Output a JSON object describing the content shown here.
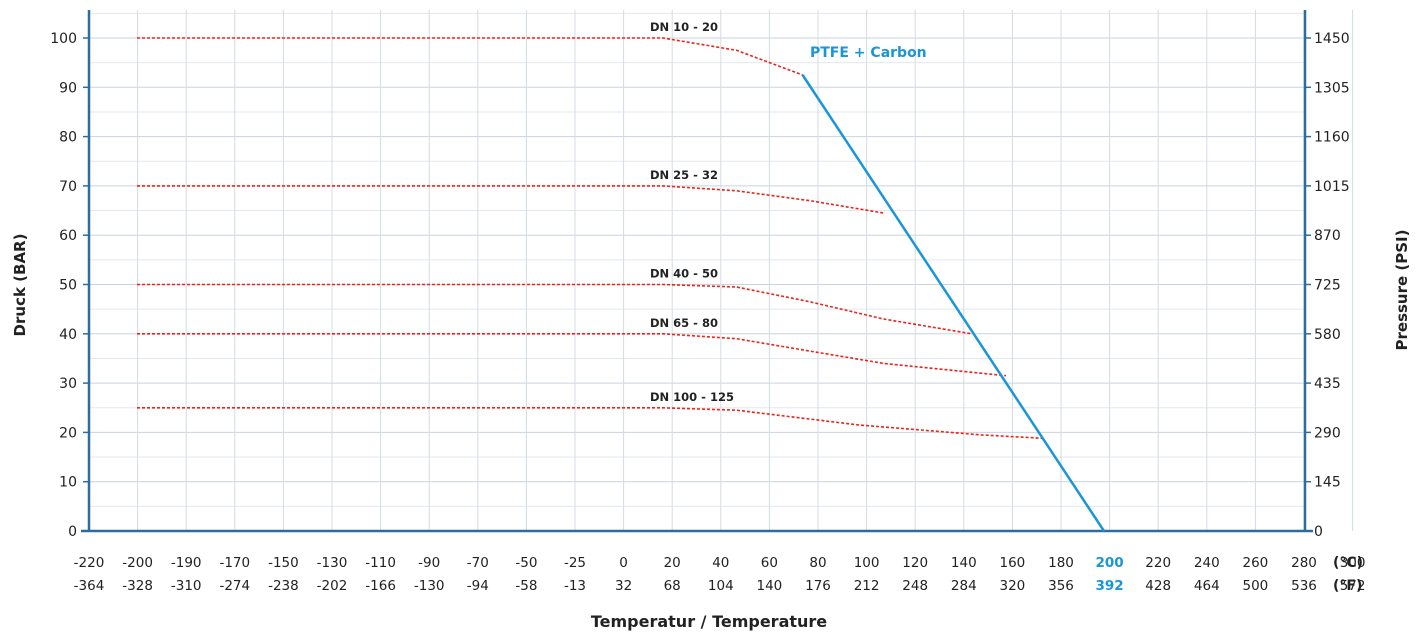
{
  "chart_data": {
    "type": "line",
    "title": "",
    "ylabel_left": "Druck (BAR)",
    "ylabel_right": "Pressure (PSI)",
    "xlabel": "Temperatur / Temperature",
    "unit_c": "(°C)",
    "unit_f": "(°F)",
    "ylim": [
      0,
      100
    ],
    "y_ticks_bar": [
      "0",
      "10",
      "20",
      "30",
      "40",
      "50",
      "60",
      "70",
      "80",
      "90",
      "100"
    ],
    "y_ticks_psi": [
      "0",
      "145",
      "290",
      "435",
      "580",
      "725",
      "870",
      "1015",
      "1160",
      "1305",
      "1450"
    ],
    "x_ticks_c": [
      "-220",
      "-200",
      "-190",
      "-170",
      "-150",
      "-130",
      "-110",
      "-90",
      "-70",
      "-50",
      "-25",
      "0",
      "20",
      "40",
      "60",
      "80",
      "100",
      "120",
      "140",
      "160",
      "180",
      "200",
      "220",
      "240",
      "260",
      "280",
      "300"
    ],
    "x_ticks_f": [
      "-364",
      "-328",
      "-310",
      "-274",
      "-238",
      "-202",
      "-166",
      "-130",
      "-94",
      "-58",
      "-13",
      "32",
      "68",
      "104",
      "140",
      "176",
      "212",
      "248",
      "284",
      "320",
      "356",
      "392",
      "428",
      "464",
      "500",
      "536",
      "572"
    ],
    "highlight_tick": "200",
    "highlight_tick_f": "392",
    "grid": true,
    "series": [
      {
        "name": "DN 10 - 20",
        "style": "dotted",
        "color": "#e8261c",
        "points": [
          [
            -200,
            100
          ],
          [
            20,
            100
          ],
          [
            50,
            97.5
          ],
          [
            77,
            92.5
          ]
        ]
      },
      {
        "name": "DN 25 - 32",
        "style": "dotted",
        "color": "#e8261c",
        "points": [
          [
            -200,
            70
          ],
          [
            20,
            70
          ],
          [
            50,
            69
          ],
          [
            80,
            67
          ],
          [
            110,
            64.5
          ]
        ]
      },
      {
        "name": "DN 40 - 50",
        "style": "dotted",
        "color": "#e8261c",
        "points": [
          [
            -200,
            50
          ],
          [
            20,
            50
          ],
          [
            50,
            49.5
          ],
          [
            80,
            46.5
          ],
          [
            110,
            43
          ],
          [
            146,
            40
          ]
        ]
      },
      {
        "name": "DN 65 - 80",
        "style": "dotted",
        "color": "#e8261c",
        "points": [
          [
            -200,
            40
          ],
          [
            20,
            40
          ],
          [
            50,
            39
          ],
          [
            80,
            36.5
          ],
          [
            110,
            34
          ],
          [
            160,
            31.5
          ]
        ]
      },
      {
        "name": "DN 100 - 125",
        "style": "dotted",
        "color": "#e8261c",
        "points": [
          [
            -200,
            25
          ],
          [
            20,
            25
          ],
          [
            50,
            24.5
          ],
          [
            100,
            21.5
          ],
          [
            150,
            19.5
          ],
          [
            175,
            18.8
          ]
        ]
      },
      {
        "name": "PTFE + Carbon",
        "style": "solid",
        "color": "#1a96d8",
        "points": [
          [
            77,
            92.5
          ],
          [
            200,
            0
          ]
        ]
      }
    ]
  }
}
